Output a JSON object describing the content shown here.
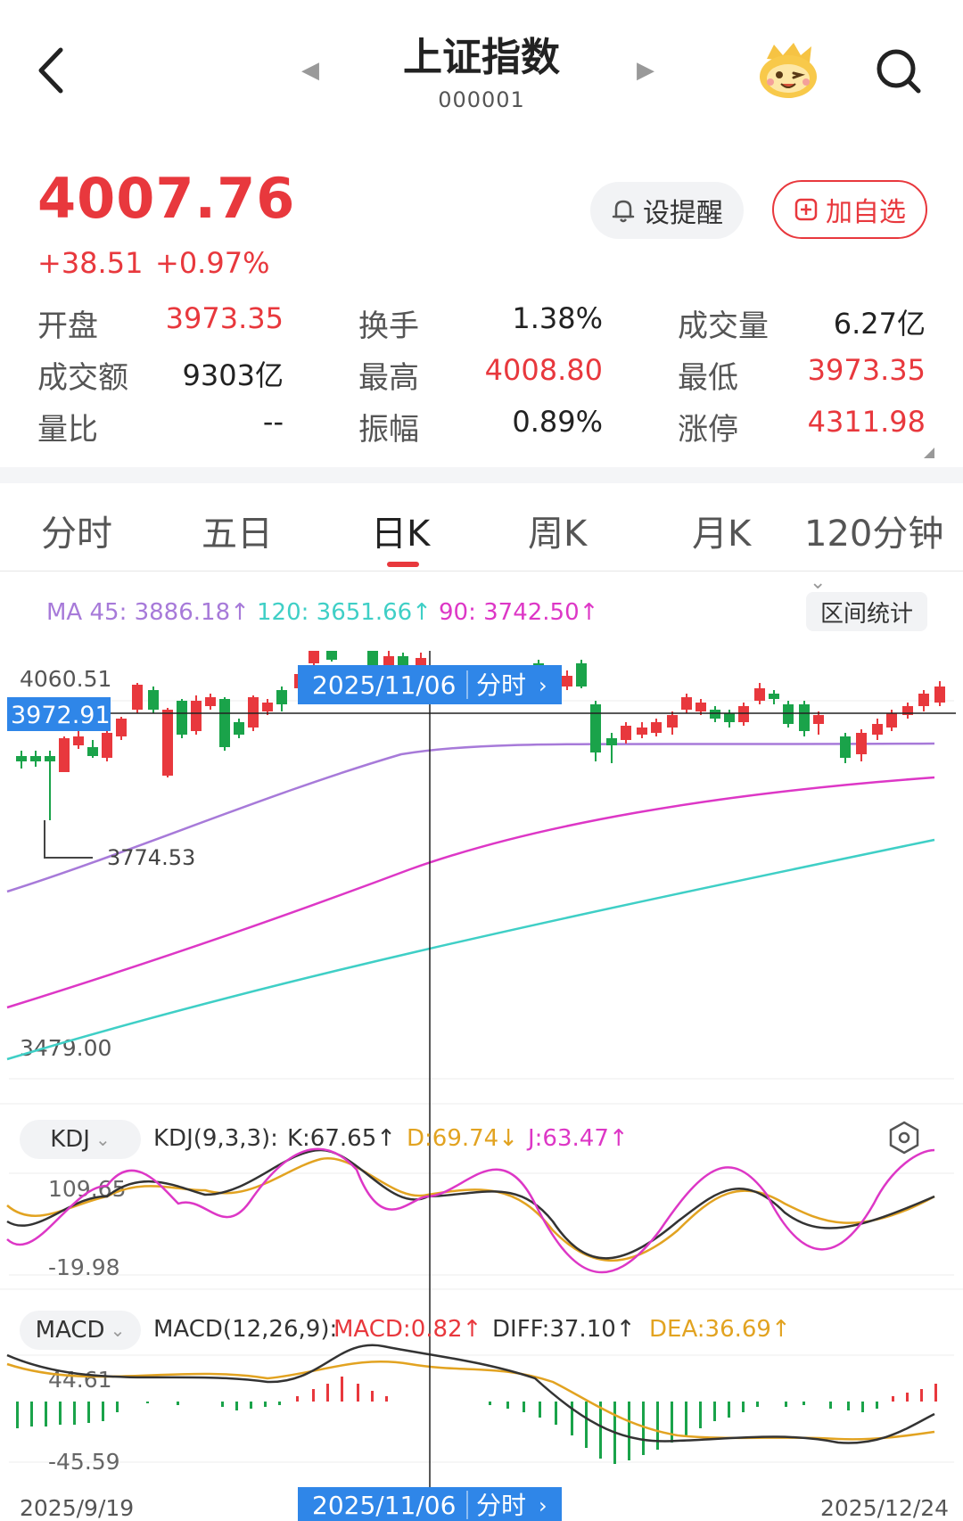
{
  "header": {
    "title": "上证指数",
    "code": "000001"
  },
  "quote": {
    "price": "4007.76",
    "change": "+38.51",
    "change_pct": "+0.97%",
    "alert_label": "设提醒",
    "watch_label": "加自选"
  },
  "stats": [
    {
      "label": "开盘",
      "value": "3973.35",
      "color": "red"
    },
    {
      "label": "换手",
      "value": "1.38%",
      "color": "dark"
    },
    {
      "label": "成交量",
      "value": "6.27亿",
      "color": "dark"
    },
    {
      "label": "成交额",
      "value": "9303亿",
      "color": "dark"
    },
    {
      "label": "最高",
      "value": "4008.80",
      "color": "red"
    },
    {
      "label": "最低",
      "value": "3973.35",
      "color": "red"
    },
    {
      "label": "量比",
      "value": "--",
      "color": "dark"
    },
    {
      "label": "振幅",
      "value": "0.89%",
      "color": "dark"
    },
    {
      "label": "涨停",
      "value": "4311.98",
      "color": "red"
    }
  ],
  "tabs": [
    {
      "label": "分时"
    },
    {
      "label": "五日"
    },
    {
      "label": "日K",
      "active": true
    },
    {
      "label": "周K"
    },
    {
      "label": "月K"
    },
    {
      "label": "120分钟"
    }
  ],
  "ma_legend": {
    "ma45": "MA 45: 3886.18↑",
    "ma120": "120: 3651.66↑",
    "ma90": "90: 3742.50↑",
    "range_button": "区间统计"
  },
  "kline": {
    "y_max_label": "4060.51",
    "y_min_label": "3479.00",
    "cursor_price": "3972.91",
    "cursor_date": "2025/11/06",
    "cursor_link": "分时",
    "low_marker": "3774.53",
    "start_date": "2025/9/19",
    "end_date": "2025/12/24"
  },
  "kdj": {
    "selector": "KDJ",
    "params": "KDJ(9,3,3):",
    "k": "K:67.65↑",
    "d": "D:69.74↓",
    "j": "J:63.47↑",
    "max_label": "109.65",
    "min_label": "-19.98"
  },
  "macd": {
    "selector": "MACD",
    "params": "MACD(12,26,9):",
    "macd": "MACD:0.82↑",
    "diff": "DIFF:37.10↑",
    "dea": "DEA:36.69↑",
    "max_label": "44.61",
    "min_label": "-45.59"
  },
  "colors": {
    "up": "#e8383d",
    "down": "#1aa34a",
    "ma45": "#a77ad9",
    "ma90": "#dd37c6",
    "ma120": "#3fcfc6",
    "dea": "#e2a321",
    "cursor_blue": "#2f86e8"
  }
}
